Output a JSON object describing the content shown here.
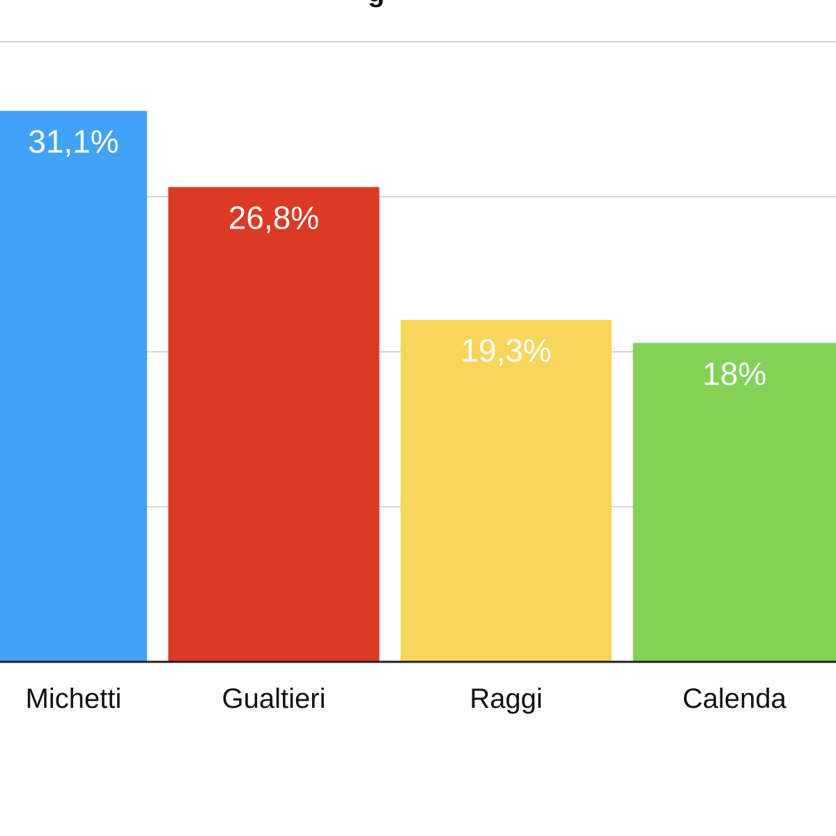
{
  "chart_data": {
    "type": "bar",
    "title_fragment": "g",
    "categories": [
      "Michetti",
      "Gualtieri",
      "Raggi",
      "Calenda"
    ],
    "values": [
      31.1,
      26.8,
      19.3,
      18.0
    ],
    "value_labels": [
      "31,1%",
      "26,8%",
      "19,3%",
      "18%"
    ],
    "colors": [
      "#42a2f6",
      "#dc3a24",
      "#f8d65b",
      "#83d258"
    ],
    "ylim": [
      0,
      35
    ],
    "grid": true,
    "legend": "none"
  }
}
